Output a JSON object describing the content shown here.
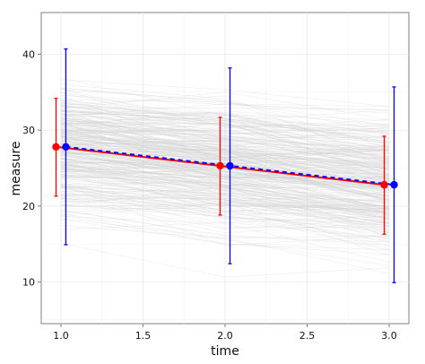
{
  "chart_data": {
    "type": "line",
    "xlabel": "time",
    "ylabel": "measure",
    "xlim": [
      0.88,
      3.12
    ],
    "ylim": [
      4.5,
      45.5
    ],
    "x_ticks": [
      1.0,
      1.5,
      2.0,
      2.5,
      3.0
    ],
    "x_tick_labels": [
      "1.0",
      "1.5",
      "2.0",
      "2.5",
      "3.0"
    ],
    "y_ticks": [
      10,
      20,
      30,
      40
    ],
    "y_tick_labels": [
      "10",
      "20",
      "30",
      "40"
    ],
    "grid": true,
    "legend": "none",
    "background_series": {
      "description_color": "#d0d0d0",
      "count": 300,
      "x": [
        1,
        2,
        3
      ],
      "mean": [
        27.8,
        25.3,
        22.8
      ]
    },
    "series": [
      {
        "color": "#ff0000",
        "x": [
          0.97,
          1.97,
          2.97
        ],
        "mean": [
          27.8,
          25.3,
          22.8
        ],
        "err_low": [
          21.3,
          18.8,
          16.3
        ],
        "err_high": [
          34.2,
          31.7,
          29.2
        ]
      },
      {
        "color": "#0000ff",
        "x": [
          1.03,
          2.03,
          3.03
        ],
        "mean": [
          27.8,
          25.3,
          22.8
        ],
        "err_low": [
          14.9,
          12.4,
          9.9
        ],
        "err_high": [
          40.7,
          38.2,
          35.7
        ]
      }
    ]
  }
}
